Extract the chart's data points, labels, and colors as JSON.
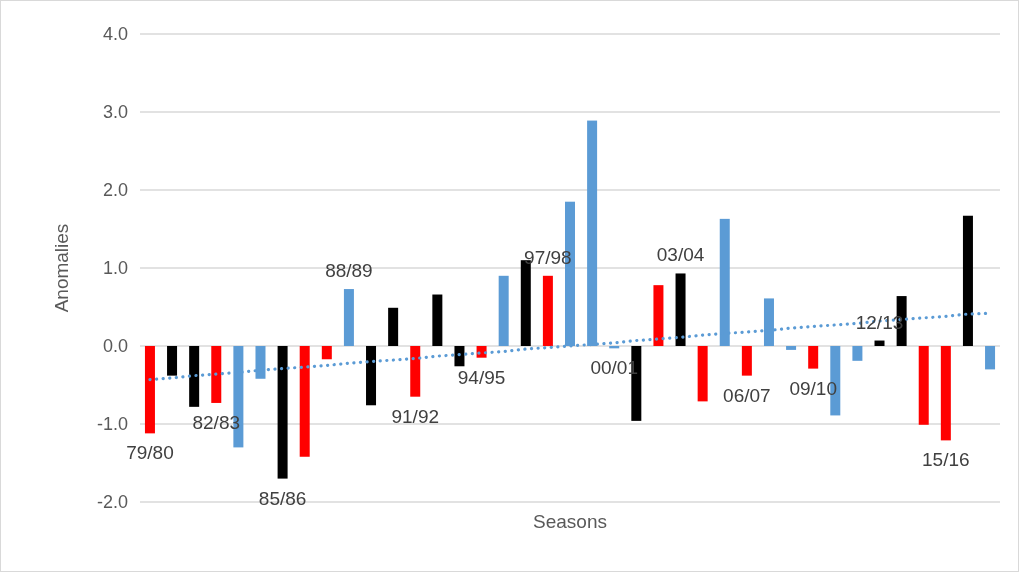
{
  "chart_data": {
    "type": "bar",
    "xlabel": "Seasons",
    "ylabel": "Anomalies",
    "categories": [
      "79/80",
      null,
      null,
      "82/83",
      null,
      null,
      "85/86",
      null,
      null,
      "88/89",
      null,
      null,
      "91/92",
      null,
      null,
      "94/95",
      null,
      null,
      "97/98",
      null,
      null,
      "00/01",
      null,
      null,
      "03/04",
      null,
      null,
      "06/07",
      null,
      null,
      "09/10",
      null,
      null,
      "12/13",
      null,
      null,
      "15/16",
      null,
      null
    ],
    "series": [
      {
        "colors": [
          "#ff0000",
          "#000000",
          "#000000",
          "#ff0000",
          "#5b9bd5",
          "#5b9bd5",
          "#000000",
          "#ff0000",
          "#ff0000",
          "#5b9bd5",
          "#000000",
          "#000000",
          "#ff0000",
          "#000000",
          "#000000",
          "#ff0000",
          "#5b9bd5",
          "#000000",
          "#ff0000",
          "#5b9bd5",
          "#5b9bd5",
          "#5b9bd5",
          "#000000",
          "#ff0000",
          "#000000",
          "#ff0000",
          "#5b9bd5",
          "#ff0000",
          "#5b9bd5",
          "#5b9bd5",
          "#ff0000",
          "#5b9bd5",
          "#5b9bd5",
          "#000000",
          "#000000",
          "#ff0000",
          "#ff0000",
          "#000000",
          "#5b9bd5"
        ],
        "values": [
          -1.12,
          -0.38,
          -0.78,
          -0.73,
          -1.3,
          -0.42,
          -1.7,
          -1.42,
          -0.17,
          0.73,
          -0.76,
          0.49,
          -0.65,
          0.66,
          -0.26,
          -0.15,
          0.9,
          1.1,
          0.9,
          1.85,
          2.89,
          -0.03,
          -0.96,
          0.78,
          0.93,
          -0.71,
          1.63,
          -0.38,
          0.61,
          -0.05,
          -0.29,
          -0.89,
          -0.19,
          0.07,
          0.64,
          -1.01,
          -1.21,
          1.67,
          -0.3
        ]
      },
      {
        "type": "line",
        "color": "#5b9bd5",
        "line_style": "dotted",
        "marker": "none",
        "values": [
          -0.43,
          -0.41,
          -0.38,
          -0.36,
          -0.34,
          -0.31,
          -0.29,
          -0.27,
          -0.25,
          -0.22,
          -0.2,
          -0.18,
          -0.16,
          -0.13,
          -0.11,
          -0.09,
          -0.07,
          -0.04,
          -0.02,
          0,
          0.02,
          0.04,
          0.07,
          0.09,
          0.11,
          0.14,
          0.16,
          0.18,
          0.2,
          0.23,
          0.25,
          0.27,
          0.29,
          0.32,
          0.34,
          0.36,
          0.38,
          0.41,
          0.42
        ]
      }
    ],
    "ylim": [
      -2,
      4
    ],
    "yticks": [
      {
        "value": -2,
        "label": "-2.0"
      },
      {
        "value": -1,
        "label": "-1.0"
      },
      {
        "value": 0,
        "label": "0.0"
      },
      {
        "value": 1,
        "label": "1.0"
      },
      {
        "value": 2,
        "label": "2.0"
      },
      {
        "value": 3,
        "label": "3.0"
      },
      {
        "value": 4,
        "label": "4.0"
      }
    ],
    "grid": "y"
  }
}
